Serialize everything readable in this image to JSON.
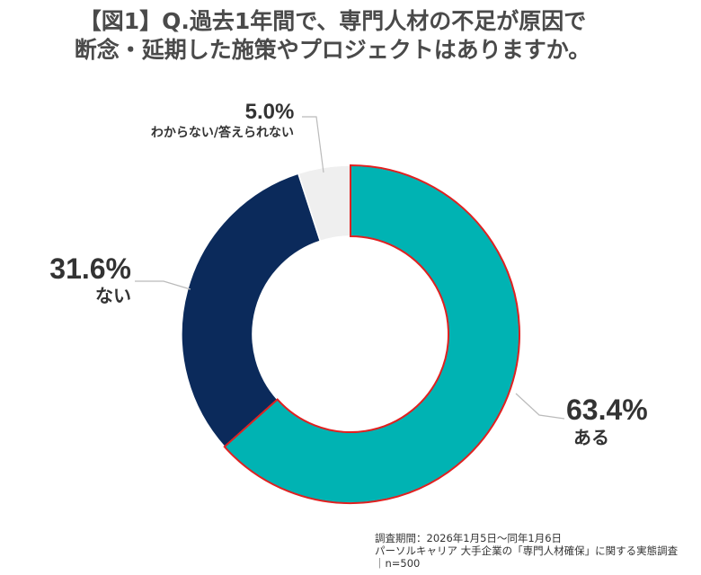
{
  "title": {
    "line1": "【図1】Q.過去1年間で、専門人材の不足が原因で",
    "line2": "断念・延期した施策やプロジェクトはありますか。"
  },
  "chart_data": {
    "type": "pie",
    "donut": true,
    "start": "top",
    "direction": "clockwise",
    "slices": [
      {
        "label": "ある",
        "value": 63.4,
        "value_label": "63.4%",
        "color": "#00b3b3",
        "highlight": true,
        "highlight_color": "#e02020"
      },
      {
        "label": "ない",
        "value": 31.6,
        "value_label": "31.6%",
        "color": "#0b2a5b"
      },
      {
        "label": "わからない/答えられない",
        "value": 5.0,
        "value_label": "5.0%",
        "color": "#efefef"
      }
    ]
  },
  "footer": {
    "period": "調査期間：2026年1月5日～同年1月6日",
    "source": "パーソルキャリア 大手企業の「専門人材確保」に関する実態調査",
    "n": "｜n=500"
  }
}
